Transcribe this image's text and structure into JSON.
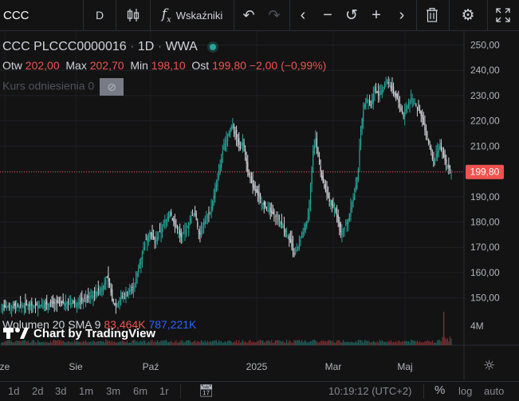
{
  "toolbar": {
    "symbol": "CCC",
    "interval": "D",
    "indicators_label": "Wskaźniki"
  },
  "legend": {
    "title": "CCC PLCCC0000016",
    "interval": "1D",
    "exchange": "WWA",
    "open_label": "Otw",
    "open": "202,00",
    "high_label": "Max",
    "high": "202,70",
    "low_label": "Min",
    "low": "198,10",
    "close_label": "Ost",
    "close": "199,80",
    "change": "−2,00 (−0,99%)",
    "comparison_label": "Kurs odniesienia 0"
  },
  "volume_legend": {
    "label": "Wolumen 20 SMA 9",
    "value": "83,464K",
    "sma": "787,221K"
  },
  "watermark": "Chart by TradingView",
  "price_axis": {
    "ticks": [
      "250,00",
      "240,00",
      "230,00",
      "220,00",
      "210,00",
      "200,00",
      "190,00",
      "180,00",
      "170,00",
      "160,00",
      "150,00"
    ],
    "last_price": "199,80",
    "volume_tick": "4M"
  },
  "time_axis": {
    "labels": [
      "ze",
      "Sie",
      "Paź",
      "2025",
      "Mar",
      "Maj"
    ]
  },
  "bottombar": {
    "ranges": [
      "1d",
      "2d",
      "3d",
      "1m",
      "3m",
      "6m",
      "1r"
    ],
    "clock": "10:19:12 (UTC+2)",
    "percent": "%",
    "log": "log",
    "auto": "auto"
  },
  "colors": {
    "background": "#131313",
    "up": "#26a69a",
    "down": "#ef5350",
    "candle_body": "#d1d4dc",
    "legend_value": "#ef5350",
    "sma": "#2962ff",
    "price_badge": "#ef5350"
  },
  "chart_data": {
    "type": "candlestick",
    "ylim": [
      142,
      253
    ],
    "last_price": 199.8,
    "price_ticks": [
      250,
      240,
      230,
      220,
      210,
      200,
      190,
      180,
      170,
      160,
      150
    ],
    "time_labels": [
      "ze",
      "Sie",
      "Paź",
      "2025",
      "Mar",
      "Maj"
    ],
    "close_path": [
      [
        0,
        146
      ],
      [
        12,
        147
      ],
      [
        28,
        147
      ],
      [
        45,
        148
      ],
      [
        60,
        148
      ],
      [
        72,
        151
      ],
      [
        80,
        154
      ],
      [
        84,
        158
      ],
      [
        86,
        155
      ],
      [
        88,
        149
      ],
      [
        91,
        147
      ],
      [
        95,
        150
      ],
      [
        100,
        152
      ],
      [
        106,
        155
      ],
      [
        108,
        160
      ],
      [
        112,
        168
      ],
      [
        114,
        172
      ],
      [
        118,
        176
      ],
      [
        122,
        172
      ],
      [
        126,
        176
      ],
      [
        130,
        180
      ],
      [
        134,
        184
      ],
      [
        136,
        181
      ],
      [
        140,
        177
      ],
      [
        143,
        174
      ],
      [
        147,
        177
      ],
      [
        150,
        181
      ],
      [
        154,
        184
      ],
      [
        156,
        178
      ],
      [
        158,
        175
      ],
      [
        161,
        180
      ],
      [
        166,
        184
      ],
      [
        172,
        197
      ],
      [
        176,
        208
      ],
      [
        180,
        214
      ],
      [
        184,
        219
      ],
      [
        186,
        215
      ],
      [
        188,
        212
      ],
      [
        190,
        209
      ],
      [
        192,
        213
      ],
      [
        196,
        200
      ],
      [
        200,
        194
      ],
      [
        205,
        190
      ],
      [
        210,
        186
      ],
      [
        214,
        184
      ],
      [
        219,
        182
      ],
      [
        222,
        180
      ],
      [
        226,
        176
      ],
      [
        230,
        172
      ],
      [
        233,
        167
      ],
      [
        236,
        170
      ],
      [
        240,
        176
      ],
      [
        244,
        182
      ],
      [
        248,
        208
      ],
      [
        250,
        213
      ],
      [
        252,
        206
      ],
      [
        255,
        197
      ],
      [
        258,
        192
      ],
      [
        261,
        188
      ],
      [
        264,
        186
      ],
      [
        266,
        184
      ],
      [
        270,
        176
      ],
      [
        273,
        178
      ],
      [
        276,
        181
      ],
      [
        278,
        186
      ],
      [
        281,
        191
      ],
      [
        284,
        201
      ],
      [
        286,
        218
      ],
      [
        288,
        224
      ],
      [
        290,
        229
      ],
      [
        292,
        228
      ],
      [
        294,
        226
      ],
      [
        297,
        233
      ],
      [
        300,
        230
      ],
      [
        303,
        232
      ],
      [
        306,
        236
      ],
      [
        309,
        234
      ],
      [
        312,
        231
      ],
      [
        315,
        229
      ],
      [
        318,
        224
      ],
      [
        320,
        222
      ],
      [
        323,
        226
      ],
      [
        326,
        229
      ],
      [
        329,
        227
      ],
      [
        332,
        224
      ],
      [
        335,
        221
      ],
      [
        338,
        214
      ],
      [
        342,
        208
      ],
      [
        344,
        202
      ],
      [
        346,
        207
      ],
      [
        349,
        210
      ],
      [
        351,
        207
      ],
      [
        354,
        203
      ],
      [
        358,
        200
      ]
    ],
    "last_close": 199.8,
    "volume_max_label": "4M"
  }
}
